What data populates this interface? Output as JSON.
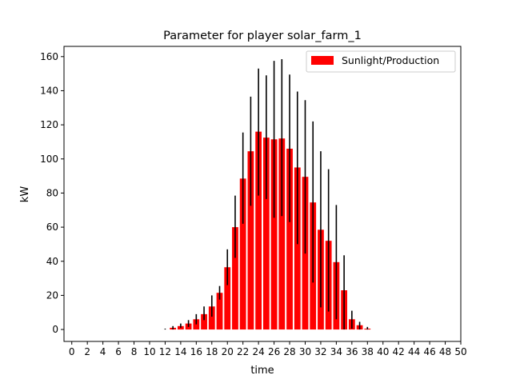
{
  "chart_data": {
    "type": "bar",
    "title": "Parameter for player solar_farm_1",
    "xlabel": "time",
    "ylabel": "kW",
    "xlim": [
      -1,
      50
    ],
    "ylim": [
      -7,
      166
    ],
    "x_ticks": [
      0,
      2,
      4,
      6,
      8,
      10,
      12,
      14,
      16,
      18,
      20,
      22,
      24,
      26,
      28,
      30,
      32,
      34,
      36,
      38,
      40,
      42,
      44,
      46,
      48,
      50
    ],
    "y_ticks": [
      0,
      20,
      40,
      60,
      80,
      100,
      120,
      140,
      160
    ],
    "grid": false,
    "legend_position": "top-right",
    "bar_color": "#ff0000",
    "errorbar_color": "#000000",
    "series": [
      {
        "name": "Sunlight/Production",
        "x": [
          12,
          13,
          14,
          15,
          16,
          17,
          18,
          19,
          20,
          21,
          22,
          23,
          24,
          25,
          26,
          27,
          28,
          29,
          30,
          31,
          32,
          33,
          34,
          35,
          36,
          37,
          38
        ],
        "values": [
          0,
          1,
          2,
          3.5,
          6,
          9,
          13.5,
          21.5,
          36.5,
          60,
          88.5,
          104.5,
          116,
          112.5,
          111.5,
          112,
          106,
          95,
          89.5,
          74.5,
          58.5,
          52,
          39.5,
          23,
          6,
          2.5,
          0.5
        ],
        "err_low": [
          0,
          0,
          1,
          1.5,
          3,
          5.5,
          7.5,
          17.5,
          26,
          42,
          62,
          72.5,
          78.5,
          76.5,
          65.5,
          66.5,
          63,
          50,
          44.5,
          27.5,
          13,
          10.5,
          6,
          0,
          0.5,
          0,
          0
        ],
        "err_high": [
          0.5,
          2,
          3.5,
          5.5,
          9,
          13.5,
          20,
          25.5,
          47,
          78.5,
          115.5,
          136.5,
          153,
          149,
          157.5,
          158.5,
          149.5,
          139.5,
          134.5,
          122,
          104.5,
          94,
          73,
          43.5,
          11,
          4.5,
          1.5
        ]
      }
    ]
  }
}
